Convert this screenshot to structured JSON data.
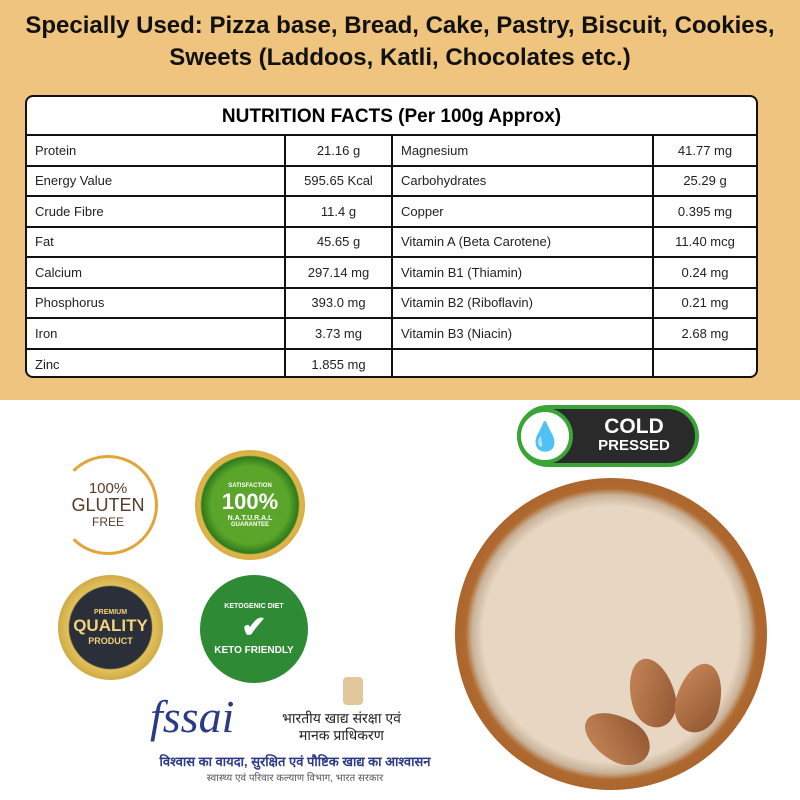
{
  "headline": "Specially Used: Pizza base, Bread, Cake, Pastry, Biscuit, Cookies, Sweets (Laddoos, Katli, Chocolates etc.)",
  "nutrition": {
    "title": "NUTRITION FACTS (Per 100g Approx)",
    "rows": [
      {
        "n1": "Protein",
        "v1": "21.16 g",
        "n2": "Magnesium",
        "v2": "41.77 mg"
      },
      {
        "n1": "Energy Value",
        "v1": "595.65 Kcal",
        "n2": "Carbohydrates",
        "v2": "25.29 g"
      },
      {
        "n1": "Crude Fibre",
        "v1": "11.4 g",
        "n2": "Copper",
        "v2": "0.395 mg"
      },
      {
        "n1": "Fat",
        "v1": "45.65 g",
        "n2": "Vitamin A (Beta Carotene)",
        "v2": "11.40 mcg"
      },
      {
        "n1": "Calcium",
        "v1": "297.14 mg",
        "n2": "Vitamin B1 (Thiamin)",
        "v2": "0.24 mg"
      },
      {
        "n1": "Phosphorus",
        "v1": "393.0 mg",
        "n2": "Vitamin B2 (Riboflavin)",
        "v2": "0.21 mg"
      },
      {
        "n1": "Iron",
        "v1": "3.73 mg",
        "n2": "Vitamin B3 (Niacin)",
        "v2": "2.68 mg"
      },
      {
        "n1": "Zinc",
        "v1": "1.855 mg",
        "n2": "",
        "v2": ""
      }
    ]
  },
  "badges": {
    "gluten": {
      "l1": "100%",
      "l2": "GLUTEN",
      "l3": "FREE"
    },
    "natural": {
      "top": "SATISFACTION",
      "main": "100%",
      "sub": "N.A.T.U.R.A.L",
      "bottom": "GUARANTEE"
    },
    "quality": {
      "top": "PREMIUM",
      "main": "QUALITY",
      "sub": "PRODUCT"
    },
    "keto": {
      "top": "KETOGENIC DIET",
      "bottom": "KETO FRIENDLY"
    },
    "cold": {
      "l1": "COLD",
      "l2": "PRESSED"
    }
  },
  "fssai": {
    "logo": "fssai",
    "hindi_l1": "भारतीय खाद्य संरक्षा एवं",
    "hindi_l2": "मानक प्राधिकरण",
    "tagline": "विश्वास का वायदा, सुरक्षित एवं पौष्टिक खाद्य का आश्वासन",
    "sub": "स्वास्थ्य एवं परिवार कल्याण विभाग, भारत सरकार"
  },
  "colors": {
    "band": "#efc47f",
    "green": "#3aa537",
    "fssai_blue": "#2c3a86"
  }
}
